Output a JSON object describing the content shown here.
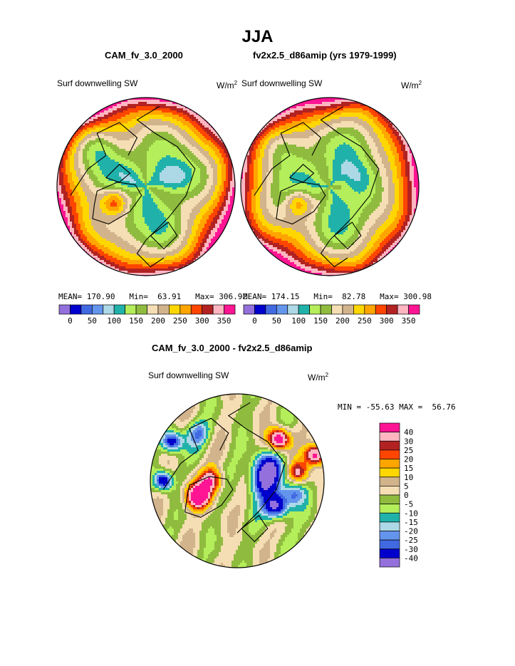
{
  "page": {
    "title": "JJA",
    "left_case": "CAM_fv_3.0_2000",
    "right_case": "fv2x2.5_d86amip (yrs 1979-1999)",
    "diff_title": "CAM_fv_3.0_2000 - fv2x2.5_d86amip"
  },
  "panels": {
    "left": {
      "variable": "Surf downwelling SW",
      "units": "W/m",
      "units_exp": "2",
      "mean_label": "MEAN=",
      "mean": "170.90",
      "min_label": "Min=",
      "min": "63.91",
      "max_label": "Max=",
      "max": "306.92"
    },
    "right": {
      "variable": "Surf downwelling SW",
      "units": "W/m",
      "units_exp": "2",
      "mean_label": "MEAN=",
      "mean": "174.15",
      "min_label": "Min=",
      "min": "82.78",
      "max_label": "Max=",
      "max": "300.98"
    },
    "diff": {
      "variable": "Surf downwelling SW",
      "units": "W/m",
      "units_exp": "2",
      "min_label": "MIN =",
      "min": "-55.63",
      "max_label": "MAX =",
      "max": "56.76"
    }
  },
  "colorbar_abs": {
    "colors": [
      "#9370db",
      "#0000cd",
      "#4169e1",
      "#6495ed",
      "#add8e6",
      "#20b2aa",
      "#b4ee5a",
      "#8fbc3f",
      "#f5deb3",
      "#d2b48c",
      "#ffd700",
      "#ffa500",
      "#ff4500",
      "#b22222",
      "#ffb6c1",
      "#ff1493"
    ],
    "tick_labels": [
      "0",
      "50",
      "100",
      "150",
      "200",
      "250",
      "300",
      "350"
    ]
  },
  "colorbar_diff": {
    "colors": [
      "#ff1493",
      "#ffb6c1",
      "#b22222",
      "#ff4500",
      "#ffa500",
      "#ffd700",
      "#d2b48c",
      "#f5deb3",
      "#8fbc3f",
      "#b4ee5a",
      "#20b2aa",
      "#add8e6",
      "#6495ed",
      "#4169e1",
      "#0000cd",
      "#9370db"
    ],
    "tick_labels": [
      "40",
      "30",
      "25",
      "20",
      "15",
      "10",
      "5",
      "0",
      "-5",
      "-10",
      "-15",
      "-20",
      "-25",
      "-30",
      "-40"
    ]
  },
  "chart_data": [
    {
      "type": "heatmap",
      "title": "CAM_fv_3.0_2000",
      "subtitle": "Surf downwelling SW",
      "projection": "north polar stereographic",
      "units": "W/m2",
      "mean": 170.9,
      "min": 63.91,
      "max": 306.92,
      "levels": [
        0,
        25,
        50,
        75,
        100,
        125,
        150,
        175,
        200,
        225,
        250,
        275,
        300,
        325,
        350
      ]
    },
    {
      "type": "heatmap",
      "title": "fv2x2.5_d86amip (yrs 1979-1999)",
      "subtitle": "Surf downwelling SW",
      "projection": "north polar stereographic",
      "units": "W/m2",
      "mean": 174.15,
      "min": 82.78,
      "max": 300.98,
      "levels": [
        0,
        25,
        50,
        75,
        100,
        125,
        150,
        175,
        200,
        225,
        250,
        275,
        300,
        325,
        350
      ]
    },
    {
      "type": "heatmap",
      "title": "CAM_fv_3.0_2000 - fv2x2.5_d86amip",
      "subtitle": "Surf downwelling SW",
      "projection": "north polar stereographic",
      "units": "W/m2",
      "min": -55.63,
      "max": 56.76,
      "levels": [
        -40,
        -30,
        -25,
        -20,
        -15,
        -10,
        -5,
        0,
        5,
        10,
        15,
        20,
        25,
        30,
        40
      ]
    }
  ]
}
